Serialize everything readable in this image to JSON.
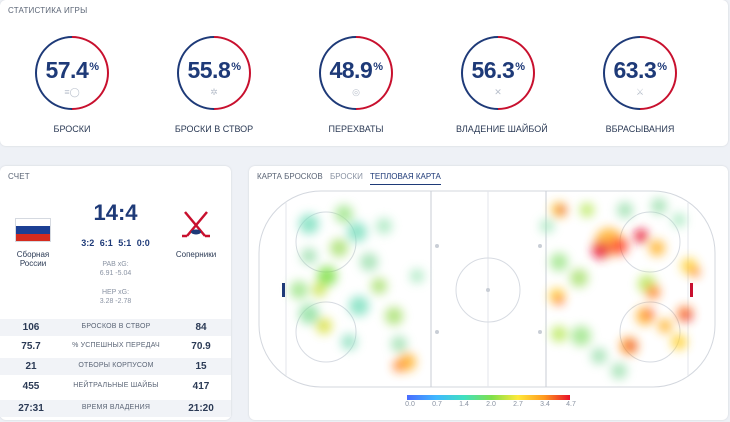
{
  "stats": {
    "title": "СТАТИСТИКА ИГРЫ",
    "items": [
      {
        "value": "57.4",
        "unit": "%",
        "label": "БРОСКИ",
        "icon": "puck-shot-icon"
      },
      {
        "value": "55.8",
        "unit": "%",
        "label": "БРОСКИ В СТВОР",
        "icon": "target-burst-icon"
      },
      {
        "value": "48.9",
        "unit": "%",
        "label": "ПЕРЕХВАТЫ",
        "icon": "target-icon"
      },
      {
        "value": "56.3",
        "unit": "%",
        "label": "ВЛАДЕНИЕ ШАЙБОЙ",
        "icon": "crossed-sticks-icon"
      },
      {
        "value": "63.3",
        "unit": "%",
        "label": "ВБРАСЫВАНИЯ",
        "icon": "faceoff-icon"
      }
    ]
  },
  "score": {
    "title": "СЧЕТ",
    "home_name": "Сборная России",
    "away_name": "Соперники",
    "result": "14:4",
    "periods": "3:2  6:1  5:1  0:0",
    "pab_label": "PAB xG:",
    "pab_value": "6.91 -5.04",
    "hep_label": "HEP xG:",
    "hep_value": "3.28 -2.78",
    "rows": [
      {
        "home": "106",
        "label": "БРОСКОВ В СТВОР",
        "away": "84"
      },
      {
        "home": "75.7",
        "label": "% УСПЕШНЫХ ПЕРЕДАЧ",
        "away": "70.9"
      },
      {
        "home": "21",
        "label": "ОТБОРЫ КОРПУСОМ",
        "away": "15"
      },
      {
        "home": "455",
        "label": "НЕЙТРАЛЬНЫЕ ШАЙБЫ",
        "away": "417"
      },
      {
        "home": "27:31",
        "label": "ВРЕМЯ ВЛАДЕНИЯ",
        "away": "21:20"
      }
    ]
  },
  "shots": {
    "title": "КАРТА БРОСКОВ",
    "tabs": [
      "БРОСКИ",
      "ТЕПЛОВАЯ КАРТА"
    ],
    "active_tab": "ТЕПЛОВАЯ КАРТА",
    "legend": [
      "0.0",
      "0.7",
      "1.4",
      "2.0",
      "2.7",
      "3.4",
      "4.7"
    ]
  }
}
